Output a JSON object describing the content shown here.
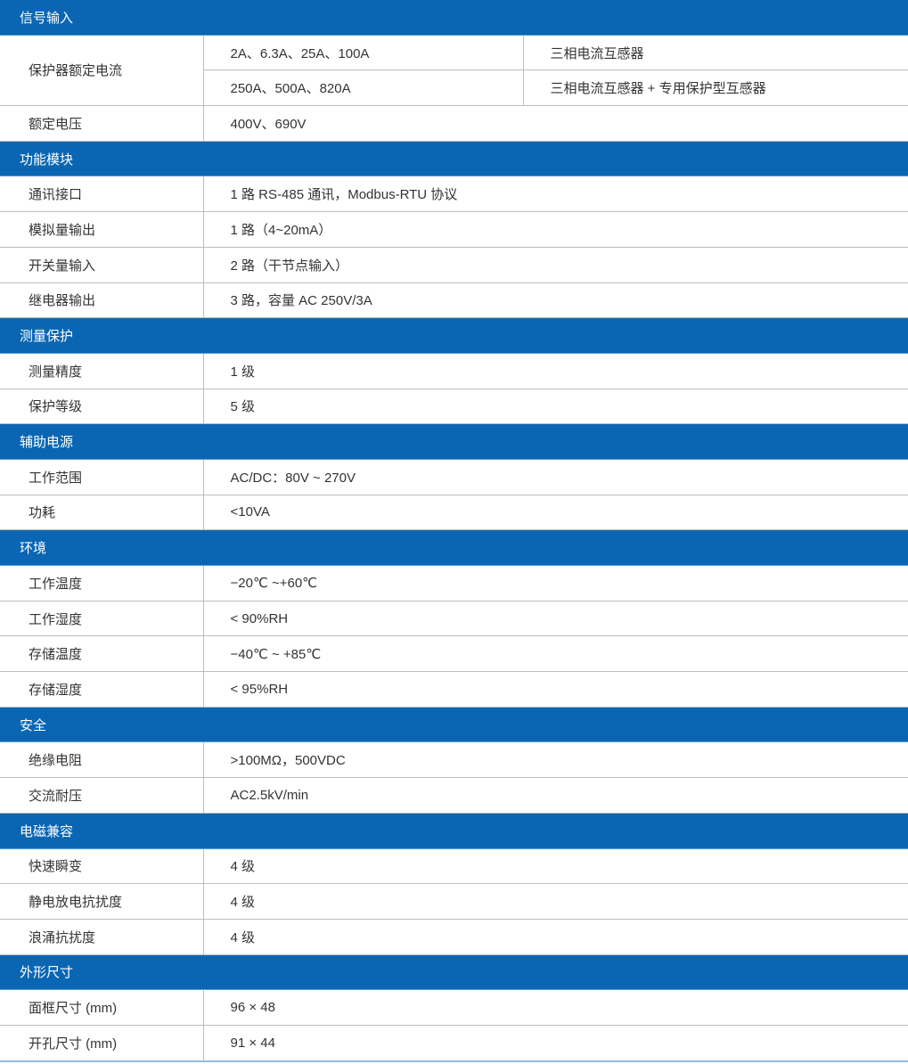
{
  "colors": {
    "section_header": "#0a66b3",
    "border": "#bdbdbd"
  },
  "sections": [
    {
      "title": "信号输入",
      "rows": [
        {
          "label": "保护器额定电流",
          "sub": [
            [
              "2A、6.3A、25A、100A",
              "三相电流互感器"
            ],
            [
              "250A、500A、820A",
              "三相电流互感器 + 专用保护型互感器"
            ]
          ]
        },
        {
          "label": "额定电压",
          "value": "400V、690V"
        }
      ]
    },
    {
      "title": "功能模块",
      "rows": [
        {
          "label": "通讯接口",
          "value": "1 路 RS-485 通讯，Modbus-RTU 协议"
        },
        {
          "label": "模拟量输出",
          "value": "1 路（4~20mA）"
        },
        {
          "label": "开关量输入",
          "value": "2 路（干节点输入）"
        },
        {
          "label": "继电器输出",
          "value": "3 路，容量 AC 250V/3A"
        }
      ]
    },
    {
      "title": "测量保护",
      "rows": [
        {
          "label": "测量精度",
          "value": "1 级"
        },
        {
          "label": "保护等级",
          "value": "5 级"
        }
      ]
    },
    {
      "title": "辅助电源",
      "rows": [
        {
          "label": "工作范围",
          "value": "AC/DC：80V ~ 270V"
        },
        {
          "label": "功耗",
          "value": "<10VA"
        }
      ]
    },
    {
      "title": "环境",
      "rows": [
        {
          "label": "工作温度",
          "value": "−20℃ ~+60℃"
        },
        {
          "label": "工作湿度",
          "value": "< 90%RH"
        },
        {
          "label": "存储温度",
          "value": "−40℃ ~ +85℃"
        },
        {
          "label": "存储湿度",
          "value": "< 95%RH"
        }
      ]
    },
    {
      "title": "安全",
      "rows": [
        {
          "label": "绝缘电阻",
          "value": ">100MΩ，500VDC"
        },
        {
          "label": "交流耐压",
          "value": "AC2.5kV/min"
        }
      ]
    },
    {
      "title": "电磁兼容",
      "rows": [
        {
          "label": "快速瞬变",
          "value": "4 级"
        },
        {
          "label": "静电放电抗扰度",
          "value": "4 级"
        },
        {
          "label": "浪涌抗扰度",
          "value": "4 级"
        }
      ]
    },
    {
      "title": "外形尺寸",
      "rows": [
        {
          "label": "面框尺寸 (mm)",
          "value": "96 × 48"
        },
        {
          "label": "开孔尺寸 (mm)",
          "value": "91 × 44"
        }
      ]
    }
  ]
}
